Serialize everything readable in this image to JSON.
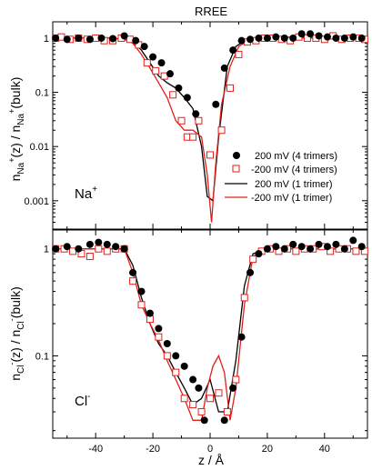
{
  "chart_data": [
    {
      "type": "line",
      "title": "RREE",
      "ylabel_main": "n",
      "ylabel_sub1": "Na",
      "ylabel_sup1": "+",
      "ylabel_mid": "(z) / n",
      "ylabel_sub2": "Na",
      "ylabel_sup2": "+",
      "ylabel_end": "(bulk)",
      "ion_label": "Na",
      "ion_sup": "+",
      "xlim": [
        -55,
        55
      ],
      "ylim": [
        0.0003,
        2
      ],
      "yscale": "log",
      "xticks": [
        "-40",
        "-20",
        "0",
        "20",
        "40"
      ],
      "xtick_values": [
        -40,
        -20,
        0,
        20,
        40
      ],
      "yticks": [
        "0.001",
        "0.01",
        "0.1",
        "1"
      ],
      "ytick_values": [
        0.001,
        0.01,
        0.1,
        1
      ],
      "legend": {
        "position": "bottom-right",
        "entries": [
          "200 mV (4 trimers)",
          "-200 mV (4 trimers)",
          "200 mV (1 trimer)",
          "-200 mV (1 trimer)"
        ]
      },
      "series": [
        {
          "style": "filled-circle",
          "color": "#000000",
          "x": [
            -54,
            -50,
            -46,
            -42,
            -38,
            -34,
            -30,
            -26,
            -23,
            -20,
            -17,
            -14,
            -11,
            -8,
            -5,
            2,
            5,
            8,
            11,
            14,
            17,
            20,
            23,
            26,
            29,
            32,
            35,
            38,
            41,
            44,
            47,
            50,
            53
          ],
          "y": [
            1.0,
            0.95,
            1.0,
            0.95,
            1.0,
            0.98,
            1.1,
            0.9,
            0.7,
            0.45,
            0.35,
            0.22,
            0.12,
            0.08,
            0.04,
            0.06,
            0.28,
            0.6,
            0.9,
            0.95,
            1.0,
            1.0,
            1.05,
            1.0,
            1.0,
            1.2,
            1.2,
            1.1,
            1.05,
            1.0,
            1.0,
            1.05,
            1.0
          ]
        },
        {
          "style": "open-square",
          "color": "#e0201b",
          "x": [
            -54,
            -52,
            -49,
            -46,
            -43,
            -40,
            -37,
            -34,
            -31,
            -28,
            -25,
            -22,
            -19,
            -16,
            -13,
            -10,
            -8,
            -6,
            -4,
            0,
            4,
            7,
            10,
            13,
            16,
            19,
            22,
            25,
            28,
            31,
            34,
            37,
            40,
            43,
            46,
            49,
            52,
            54
          ],
          "y": [
            1.0,
            1.05,
            0.95,
            1.0,
            0.95,
            1.0,
            0.9,
            0.9,
            1.0,
            0.95,
            0.75,
            0.35,
            0.25,
            0.2,
            0.09,
            0.03,
            0.015,
            0.015,
            0.03,
            0.007,
            0.02,
            0.12,
            0.5,
            0.85,
            0.9,
            1.0,
            1.0,
            0.95,
            0.9,
            1.05,
            1.0,
            1.0,
            0.95,
            1.1,
            0.95,
            1.0,
            1.0,
            0.95
          ]
        },
        {
          "style": "line",
          "color": "#000000",
          "x": [
            -55,
            -45,
            -35,
            -30,
            -27,
            -24,
            -21,
            -18,
            -15,
            -12,
            -9,
            -6,
            -3,
            -1,
            1,
            3,
            6,
            9,
            12,
            15,
            20,
            30,
            40,
            55
          ],
          "y": [
            1.0,
            1.0,
            1.0,
            0.95,
            0.85,
            0.6,
            0.35,
            0.2,
            0.15,
            0.12,
            0.08,
            0.05,
            0.01,
            0.0012,
            0.001,
            0.015,
            0.3,
            0.7,
            0.9,
            1.0,
            1.0,
            1.05,
            1.0,
            1.0
          ]
        },
        {
          "style": "line",
          "color": "#e0201b",
          "x": [
            -55,
            -45,
            -35,
            -30,
            -27,
            -24,
            -21,
            -18,
            -15,
            -12,
            -9,
            -6,
            -3,
            -1,
            0.5,
            2,
            4,
            7,
            10,
            13,
            16,
            20,
            30,
            40,
            55
          ],
          "y": [
            1.0,
            1.0,
            1.0,
            0.95,
            0.8,
            0.5,
            0.28,
            0.15,
            0.08,
            0.03,
            0.02,
            0.02,
            0.015,
            0.003,
            0.0004,
            0.005,
            0.06,
            0.3,
            0.7,
            0.9,
            1.0,
            1.0,
            1.0,
            1.0,
            1.0
          ]
        }
      ]
    },
    {
      "type": "line",
      "xlabel": "z / Å",
      "ylabel_main": "n",
      "ylabel_sub1": "Cl",
      "ylabel_sup1": "-",
      "ylabel_mid": "(z) / n",
      "ylabel_sub2": "Cl",
      "ylabel_sup2": "-",
      "ylabel_end": "(bulk)",
      "ion_label": "Cl",
      "ion_sup": "-",
      "xlim": [
        -55,
        55
      ],
      "ylim": [
        0.017,
        1.5
      ],
      "yscale": "log",
      "xticks": [
        "-40",
        "-20",
        "0",
        "20",
        "40"
      ],
      "xtick_values": [
        -40,
        -20,
        0,
        20,
        40
      ],
      "yticks": [
        "0.1",
        "1"
      ],
      "ytick_values": [
        0.1,
        1
      ],
      "series": [
        {
          "style": "filled-circle",
          "color": "#000000",
          "x": [
            -54,
            -50,
            -46,
            -42,
            -39,
            -36,
            -33,
            -30,
            -27,
            -24,
            -21,
            -18,
            -15,
            -12,
            -9,
            -6,
            -4,
            -2,
            5,
            8,
            11,
            14,
            17,
            20,
            23,
            26,
            29,
            32,
            35,
            38,
            41,
            44,
            47,
            50,
            53
          ],
          "y": [
            1.0,
            1.05,
            1.0,
            1.1,
            1.15,
            1.1,
            1.05,
            1.0,
            0.6,
            0.4,
            0.25,
            0.18,
            0.13,
            0.1,
            0.08,
            0.06,
            0.05,
            0.025,
            0.025,
            0.05,
            0.15,
            0.6,
            0.9,
            1.0,
            1.05,
            1.0,
            1.1,
            1.05,
            1.0,
            1.1,
            1.05,
            1.1,
            1.0,
            1.2,
            1.05
          ]
        },
        {
          "style": "open-square",
          "color": "#e0201b",
          "x": [
            -54,
            -51,
            -48,
            -45,
            -42,
            -39,
            -36,
            -33,
            -30,
            -27,
            -24,
            -21,
            -18,
            -15,
            -12,
            -9,
            -6,
            -3,
            0,
            3,
            6,
            9,
            12,
            15,
            18,
            21,
            24,
            27,
            30,
            33,
            36,
            39,
            42,
            45,
            48,
            51,
            54
          ],
          "y": [
            1.0,
            1.0,
            0.95,
            0.9,
            0.85,
            1.0,
            0.95,
            1.0,
            1.0,
            0.5,
            0.3,
            0.22,
            0.15,
            0.1,
            0.07,
            0.04,
            0.035,
            0.03,
            0.04,
            0.045,
            0.03,
            0.06,
            0.35,
            0.8,
            0.95,
            1.0,
            0.95,
            1.0,
            0.95,
            1.0,
            1.0,
            1.05,
            0.95,
            1.0,
            1.0,
            0.95,
            0.95
          ]
        },
        {
          "style": "line",
          "color": "#000000",
          "x": [
            -55,
            -45,
            -35,
            -30,
            -27,
            -24,
            -21,
            -18,
            -15,
            -12,
            -9,
            -6,
            -3,
            0,
            3,
            6,
            9,
            12,
            15,
            20,
            30,
            40,
            55
          ],
          "y": [
            1.0,
            1.0,
            1.0,
            1.0,
            0.7,
            0.35,
            0.2,
            0.13,
            0.1,
            0.07,
            0.05,
            0.035,
            0.04,
            0.06,
            0.03,
            0.03,
            0.09,
            0.45,
            0.9,
            1.0,
            1.0,
            1.0,
            1.0
          ]
        },
        {
          "style": "line",
          "color": "#e0201b",
          "x": [
            -55,
            -45,
            -35,
            -30,
            -27,
            -24,
            -21,
            -18,
            -15,
            -12,
            -9,
            -6,
            -3,
            -1,
            1,
            3,
            5,
            7,
            9,
            12,
            15,
            20,
            30,
            40,
            55
          ],
          "y": [
            1.0,
            1.0,
            1.0,
            1.0,
            0.6,
            0.3,
            0.2,
            0.14,
            0.09,
            0.06,
            0.04,
            0.025,
            0.025,
            0.05,
            0.08,
            0.1,
            0.07,
            0.025,
            0.05,
            0.3,
            0.85,
            1.0,
            1.0,
            1.0,
            1.0
          ]
        }
      ]
    }
  ]
}
